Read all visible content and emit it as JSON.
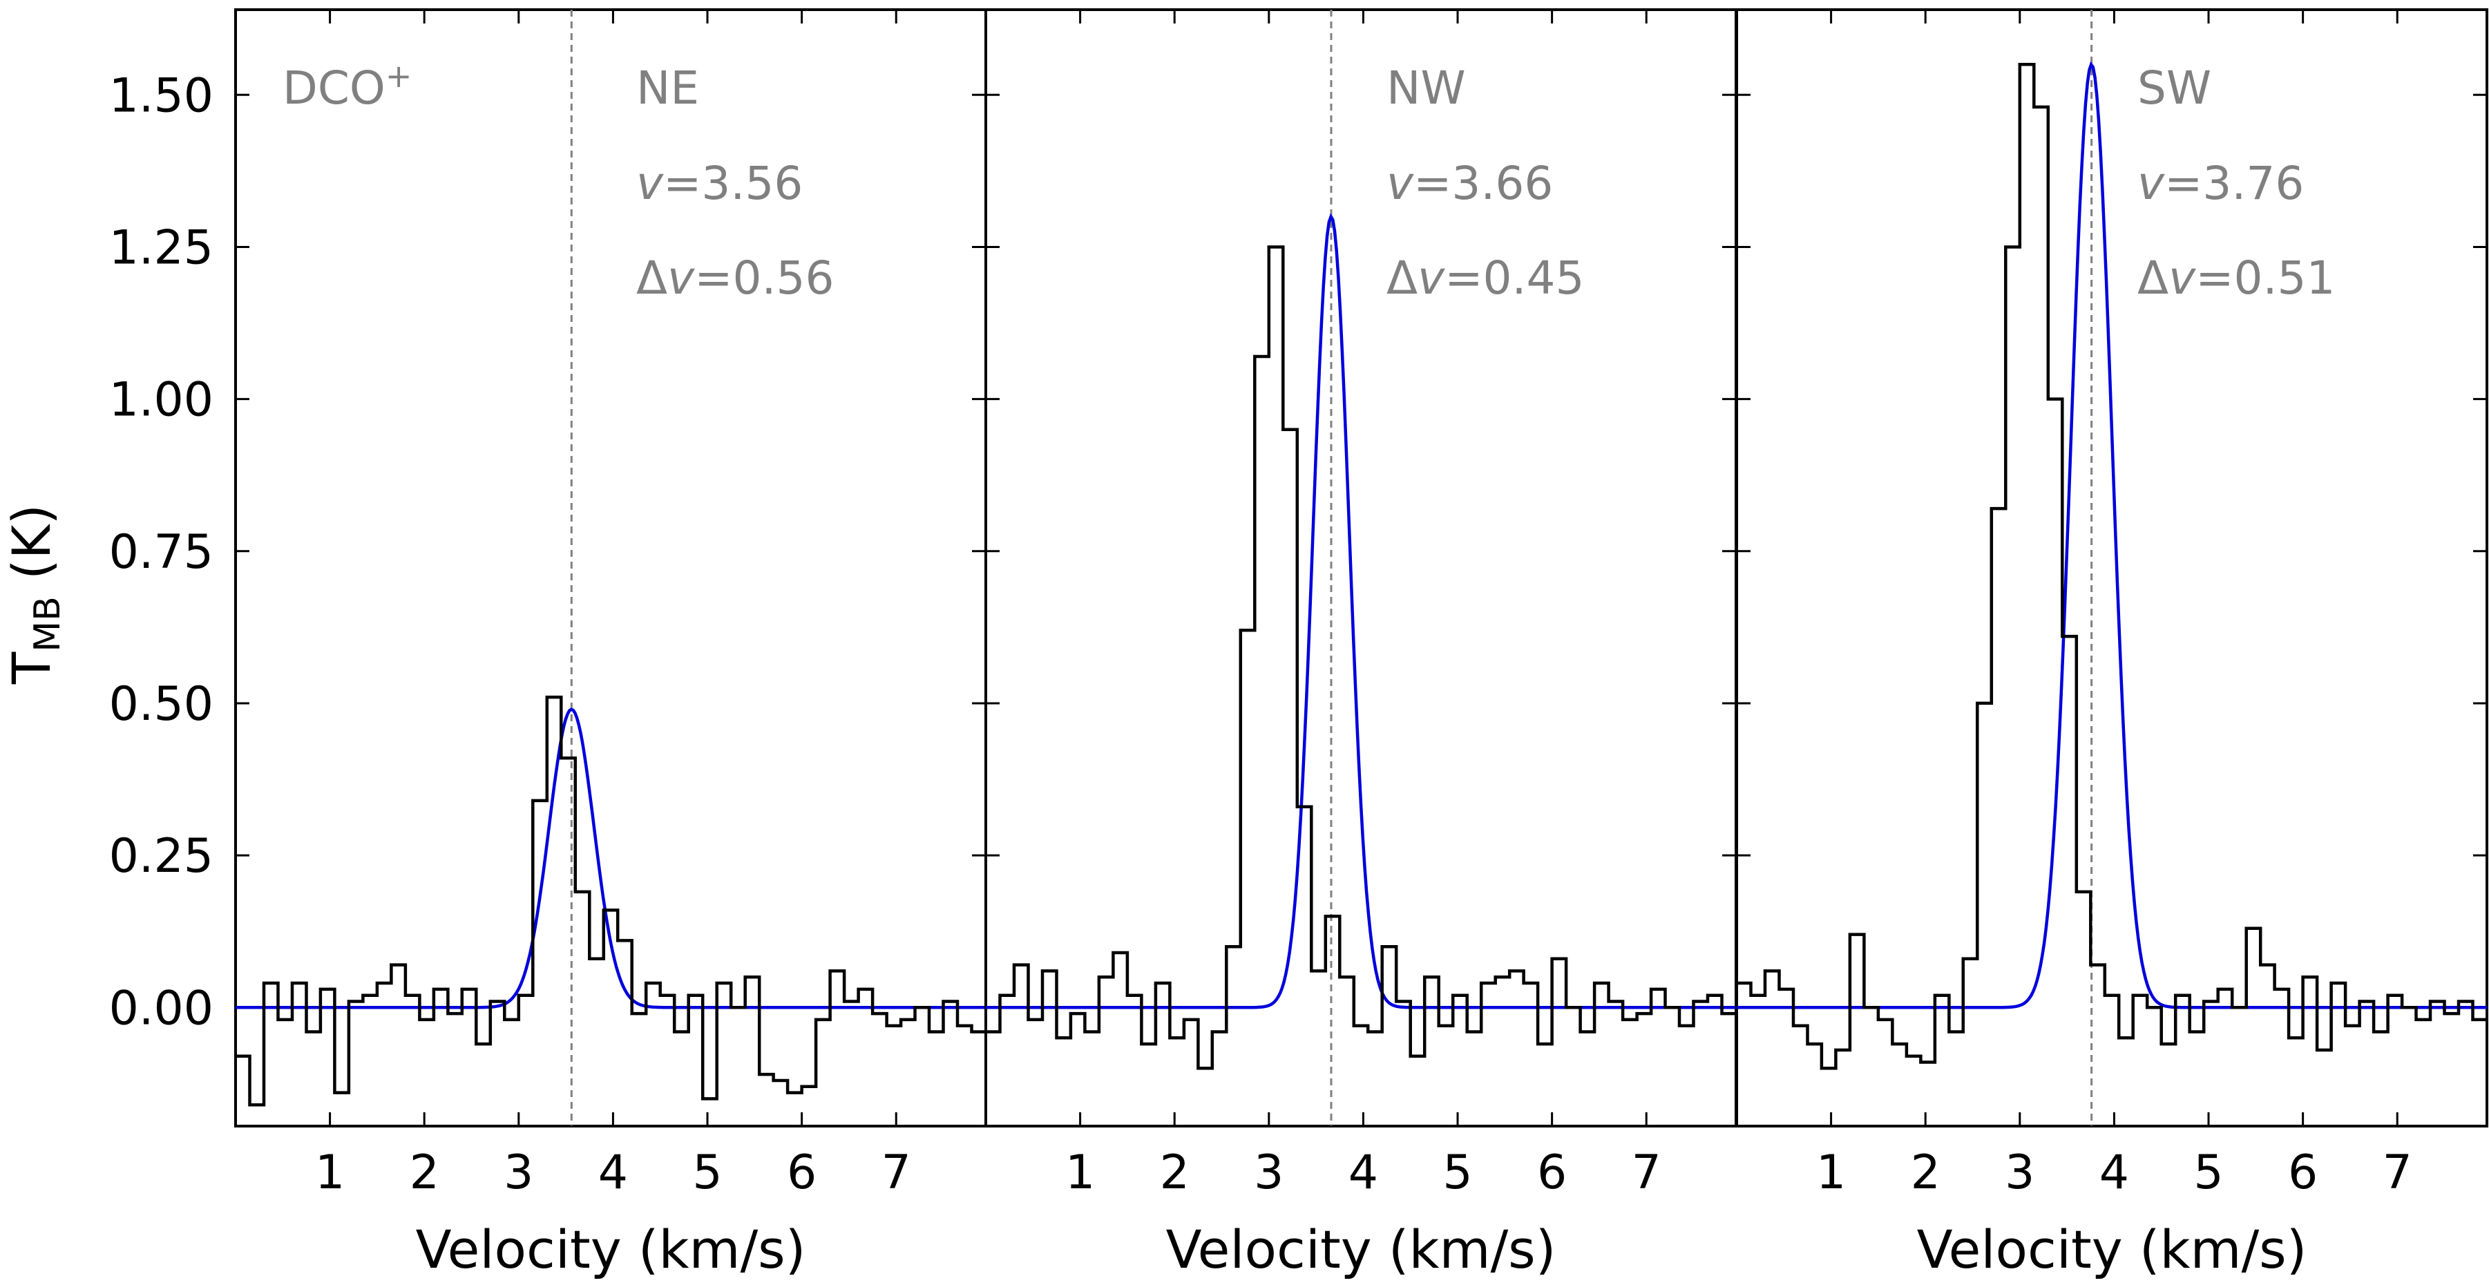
{
  "chart_data": {
    "type": "line",
    "ylabel": {
      "main": "T",
      "sub": "MB",
      "rest": " (K)"
    },
    "ylim": [
      -0.195,
      1.64
    ],
    "yticks": [
      "0.00",
      "0.25",
      "0.50",
      "0.75",
      "1.00",
      "1.25",
      "1.50"
    ],
    "xlim": [
      0.0,
      7.95
    ],
    "xticks": [
      "1",
      "2",
      "3",
      "4",
      "5",
      "6",
      "7"
    ],
    "molecule": {
      "name": "DCO",
      "sup": "+"
    },
    "colors": {
      "observed": "#000000",
      "fit": "#0000dd",
      "vline": "#808080",
      "text": "#808080"
    },
    "x": [
      0.0,
      0.15,
      0.3,
      0.45,
      0.6,
      0.75,
      0.9,
      1.05,
      1.2,
      1.35,
      1.5,
      1.65,
      1.8,
      1.95,
      2.1,
      2.25,
      2.4,
      2.55,
      2.7,
      2.85,
      3.0,
      3.15,
      3.3,
      3.45,
      3.6,
      3.75,
      3.9,
      4.05,
      4.2,
      4.35,
      4.5,
      4.65,
      4.8,
      4.95,
      5.1,
      5.25,
      5.4,
      5.55,
      5.7,
      5.85,
      6.0,
      6.15,
      6.3,
      6.45,
      6.6,
      6.75,
      6.9,
      7.05,
      7.2,
      7.35,
      7.5,
      7.65,
      7.8
    ],
    "panels": [
      {
        "region": "NE",
        "v_label": "3.56",
        "dv_label": "0.56",
        "center": 3.56,
        "peak": 0.49,
        "fwhm": 0.56,
        "observed": [
          -0.08,
          -0.16,
          0.04,
          -0.02,
          0.04,
          -0.04,
          0.03,
          -0.14,
          0.01,
          0.02,
          0.04,
          0.07,
          0.02,
          -0.02,
          0.03,
          -0.01,
          0.03,
          -0.06,
          0.01,
          -0.02,
          0.02,
          0.34,
          0.51,
          0.41,
          0.19,
          0.08,
          0.16,
          0.11,
          -0.01,
          0.04,
          0.02,
          -0.04,
          0.02,
          -0.15,
          0.04,
          0.0,
          0.05,
          -0.11,
          -0.12,
          -0.14,
          -0.13,
          -0.02,
          0.06,
          0.01,
          0.03,
          -0.01,
          -0.03,
          -0.02,
          0.0,
          -0.04,
          0.01,
          -0.03,
          -0.04
        ]
      },
      {
        "region": "NW",
        "v_label": "3.66",
        "dv_label": "0.45",
        "center": 3.66,
        "peak": 1.3,
        "fwhm": 0.45,
        "observed": [
          -0.04,
          0.02,
          0.07,
          -0.02,
          0.06,
          -0.05,
          -0.01,
          -0.04,
          0.05,
          0.09,
          0.02,
          -0.06,
          0.04,
          -0.05,
          -0.02,
          -0.1,
          -0.04,
          0.1,
          0.62,
          1.07,
          1.25,
          0.95,
          0.33,
          0.06,
          0.15,
          0.05,
          -0.03,
          -0.04,
          0.1,
          0.01,
          -0.08,
          0.05,
          -0.03,
          0.02,
          -0.04,
          0.04,
          0.05,
          0.06,
          0.04,
          -0.06,
          0.08,
          0.0,
          -0.04,
          0.04,
          0.01,
          -0.02,
          -0.01,
          0.03,
          0.0,
          -0.03,
          0.01,
          0.02,
          -0.01
        ]
      },
      {
        "region": "SW",
        "v_label": "3.76",
        "dv_label": "0.51",
        "center": 3.76,
        "peak": 1.55,
        "fwhm": 0.51,
        "observed": [
          0.04,
          0.02,
          0.06,
          0.03,
          -0.03,
          -0.06,
          -0.1,
          -0.07,
          0.12,
          0.0,
          -0.02,
          -0.06,
          -0.08,
          -0.09,
          0.02,
          -0.04,
          0.08,
          0.5,
          0.82,
          1.25,
          1.55,
          1.48,
          1.0,
          0.61,
          0.19,
          0.07,
          0.02,
          -0.05,
          0.02,
          0.0,
          -0.06,
          0.02,
          -0.04,
          0.01,
          0.03,
          0.0,
          0.13,
          0.07,
          0.03,
          -0.05,
          0.05,
          -0.07,
          0.04,
          -0.03,
          0.01,
          -0.04,
          0.02,
          0.0,
          -0.02,
          0.01,
          -0.01,
          0.01,
          -0.02
        ]
      }
    ],
    "xlabel": "Velocity (km/s)"
  }
}
